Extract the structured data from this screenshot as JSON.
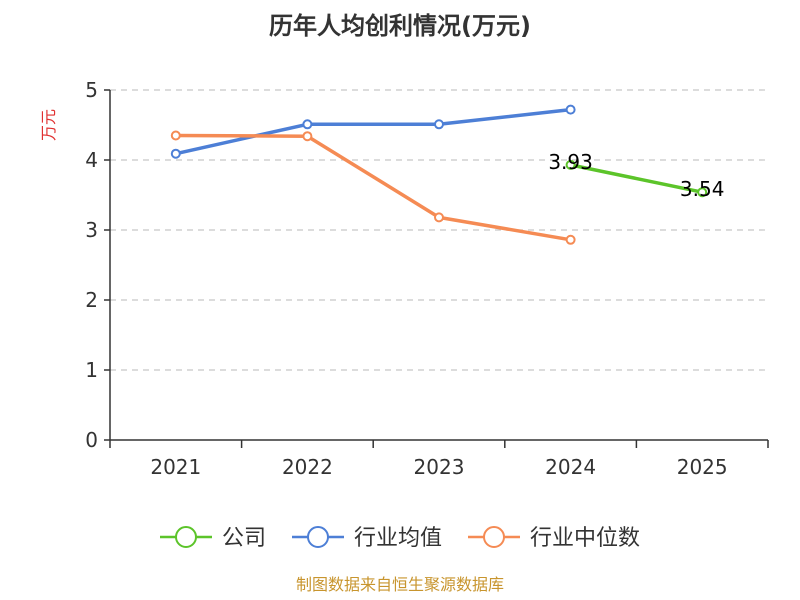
{
  "chart_data": {
    "type": "line",
    "title": "历年人均创利情况(万元)",
    "xlabel": "",
    "ylabel": "万元",
    "ylim": [
      0,
      5
    ],
    "yticks": [
      0,
      1,
      2,
      3,
      4,
      5
    ],
    "categories": [
      "2021",
      "2022",
      "2023",
      "2024",
      "2025"
    ],
    "grid": true,
    "legend_position": "bottom",
    "series": [
      {
        "name": "公司",
        "color": "#5cc42a",
        "values": [
          null,
          null,
          null,
          3.93,
          3.54
        ],
        "labels": [
          null,
          null,
          null,
          "3.93",
          "3.54"
        ]
      },
      {
        "name": "行业均值",
        "color": "#4d7fd6",
        "values": [
          4.09,
          4.51,
          4.51,
          4.72,
          null
        ]
      },
      {
        "name": "行业中位数",
        "color": "#f58b54",
        "values": [
          4.35,
          4.34,
          3.18,
          2.86,
          null
        ]
      }
    ],
    "source": "制图数据来自恒生聚源数据库",
    "ylabel_color": "#e03030",
    "source_color": "#c8952e",
    "grid_color": "#c8c8c8",
    "axis_color": "#333333"
  }
}
